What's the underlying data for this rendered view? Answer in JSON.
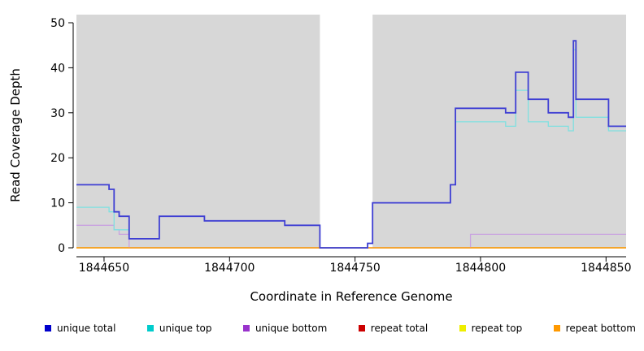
{
  "figure": {
    "background": "#ffffff"
  },
  "chart_data": {
    "type": "line",
    "step": true,
    "title": "",
    "xlabel": "Coordinate in Reference Genome",
    "ylabel": "Read Coverage Depth",
    "xlim": [
      1844639,
      1844858
    ],
    "ylim": [
      0,
      50
    ],
    "x_ticks": [
      1844650,
      1844700,
      1844750,
      1844800,
      1844850
    ],
    "y_ticks": [
      0,
      10,
      20,
      30,
      40,
      50
    ],
    "grid": false,
    "plot_background": "#d7d7d7",
    "shaded_x_ranges": [
      [
        1844639,
        1844736
      ],
      [
        1844757,
        1844858
      ]
    ],
    "series": [
      {
        "key": "repeat-total",
        "name": "repeat total",
        "color": "#d40000",
        "width": 1.2,
        "points": [
          [
            1844639,
            0
          ]
        ]
      },
      {
        "key": "repeat-top",
        "name": "repeat top",
        "color": "#e8e800",
        "width": 1.2,
        "points": [
          [
            1844639,
            0
          ]
        ]
      },
      {
        "key": "unique-bottom",
        "name": "unique bottom",
        "color": "#c9a3e0",
        "width": 1.3,
        "points": [
          [
            1844639,
            5
          ],
          [
            1844654,
            4
          ],
          [
            1844656,
            3
          ],
          [
            1844660,
            0
          ],
          [
            1844796,
            3
          ]
        ]
      },
      {
        "key": "repeat-bottom",
        "name": "repeat bottom",
        "color": "#ff9d00",
        "width": 1.3,
        "points": [
          [
            1844639,
            0
          ]
        ]
      },
      {
        "key": "unique-top",
        "name": "unique top",
        "color": "#7fe0e0",
        "width": 1.3,
        "points": [
          [
            1844639,
            9
          ],
          [
            1844652,
            8
          ],
          [
            1844654,
            4
          ],
          [
            1844660,
            2
          ],
          [
            1844672,
            7
          ],
          [
            1844690,
            6
          ],
          [
            1844722,
            5
          ],
          [
            1844736,
            0
          ],
          [
            1844755,
            1
          ],
          [
            1844757,
            10
          ],
          [
            1844786,
            10
          ],
          [
            1844788,
            14
          ],
          [
            1844790,
            28
          ],
          [
            1844810,
            27
          ],
          [
            1844814,
            35
          ],
          [
            1844819,
            28
          ],
          [
            1844827,
            27
          ],
          [
            1844835,
            26
          ],
          [
            1844837,
            44
          ],
          [
            1844838,
            29
          ],
          [
            1844851,
            26
          ]
        ]
      },
      {
        "key": "unique-total",
        "name": "unique total",
        "color": "#3f3fd3",
        "width": 1.8,
        "points": [
          [
            1844639,
            14
          ],
          [
            1844652,
            13
          ],
          [
            1844654,
            8
          ],
          [
            1844656,
            7
          ],
          [
            1844660,
            2
          ],
          [
            1844672,
            7
          ],
          [
            1844690,
            6
          ],
          [
            1844722,
            5
          ],
          [
            1844736,
            0
          ],
          [
            1844755,
            1
          ],
          [
            1844757,
            10
          ],
          [
            1844786,
            10
          ],
          [
            1844788,
            14
          ],
          [
            1844790,
            31
          ],
          [
            1844810,
            30
          ],
          [
            1844814,
            39
          ],
          [
            1844819,
            33
          ],
          [
            1844827,
            30
          ],
          [
            1844835,
            29
          ],
          [
            1844837,
            46
          ],
          [
            1844838,
            33
          ],
          [
            1844851,
            27
          ]
        ]
      }
    ]
  },
  "legend": {
    "position": "bottom",
    "items": [
      {
        "label": "unique total",
        "color": "#0000cc"
      },
      {
        "label": "unique top",
        "color": "#00cccc"
      },
      {
        "label": "unique bottom",
        "color": "#9933cc"
      },
      {
        "label": "repeat total",
        "color": "#cc0000"
      },
      {
        "label": "repeat top",
        "color": "#eeee00"
      },
      {
        "label": "repeat bottom",
        "color": "#ff9900"
      }
    ]
  }
}
